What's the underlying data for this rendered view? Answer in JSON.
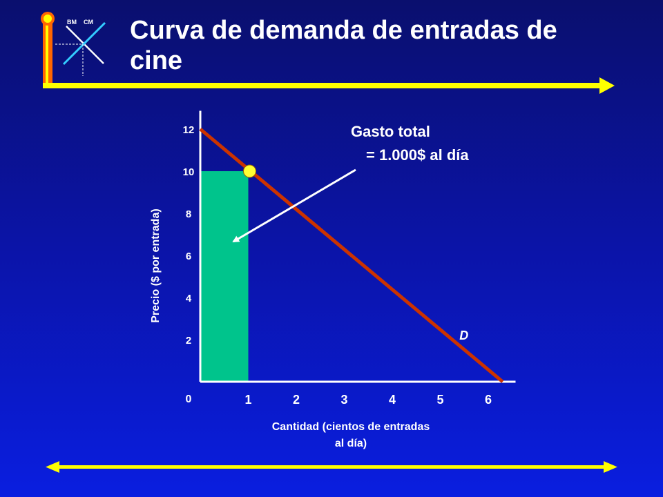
{
  "slide": {
    "title": "Curva de demanda de entradas de cine",
    "logo_text_left": "BM",
    "logo_text_right": "CM"
  },
  "colors": {
    "accent_yellow": "#ffff00",
    "curve": "#cc3300",
    "revenue_area": "#00c48c",
    "logo_orange": "#ff6600",
    "logo_cyan": "#33ccff"
  },
  "chart_data": {
    "type": "line",
    "ylabel": "Precio ($ por entrada)",
    "xlabel_line1": "Cantidad (cientos de entradas",
    "xlabel_line2": "al día)",
    "x_ticks": [
      "1",
      "2",
      "3",
      "4",
      "5",
      "6"
    ],
    "y_ticks": [
      "2",
      "4",
      "6",
      "8",
      "10",
      "12"
    ],
    "origin_label": "0",
    "xlim": [
      0,
      7
    ],
    "ylim": [
      0,
      13
    ],
    "series": [
      {
        "name": "D",
        "x": [
          0,
          6.3
        ],
        "y": [
          12,
          0
        ]
      }
    ],
    "highlight_point": {
      "x": 1,
      "y": 10
    },
    "shaded_area": {
      "x": [
        0,
        1
      ],
      "y": [
        0,
        10
      ]
    },
    "annotation_line1": "Gasto total",
    "annotation_line2": "= 1.000$ al día"
  }
}
